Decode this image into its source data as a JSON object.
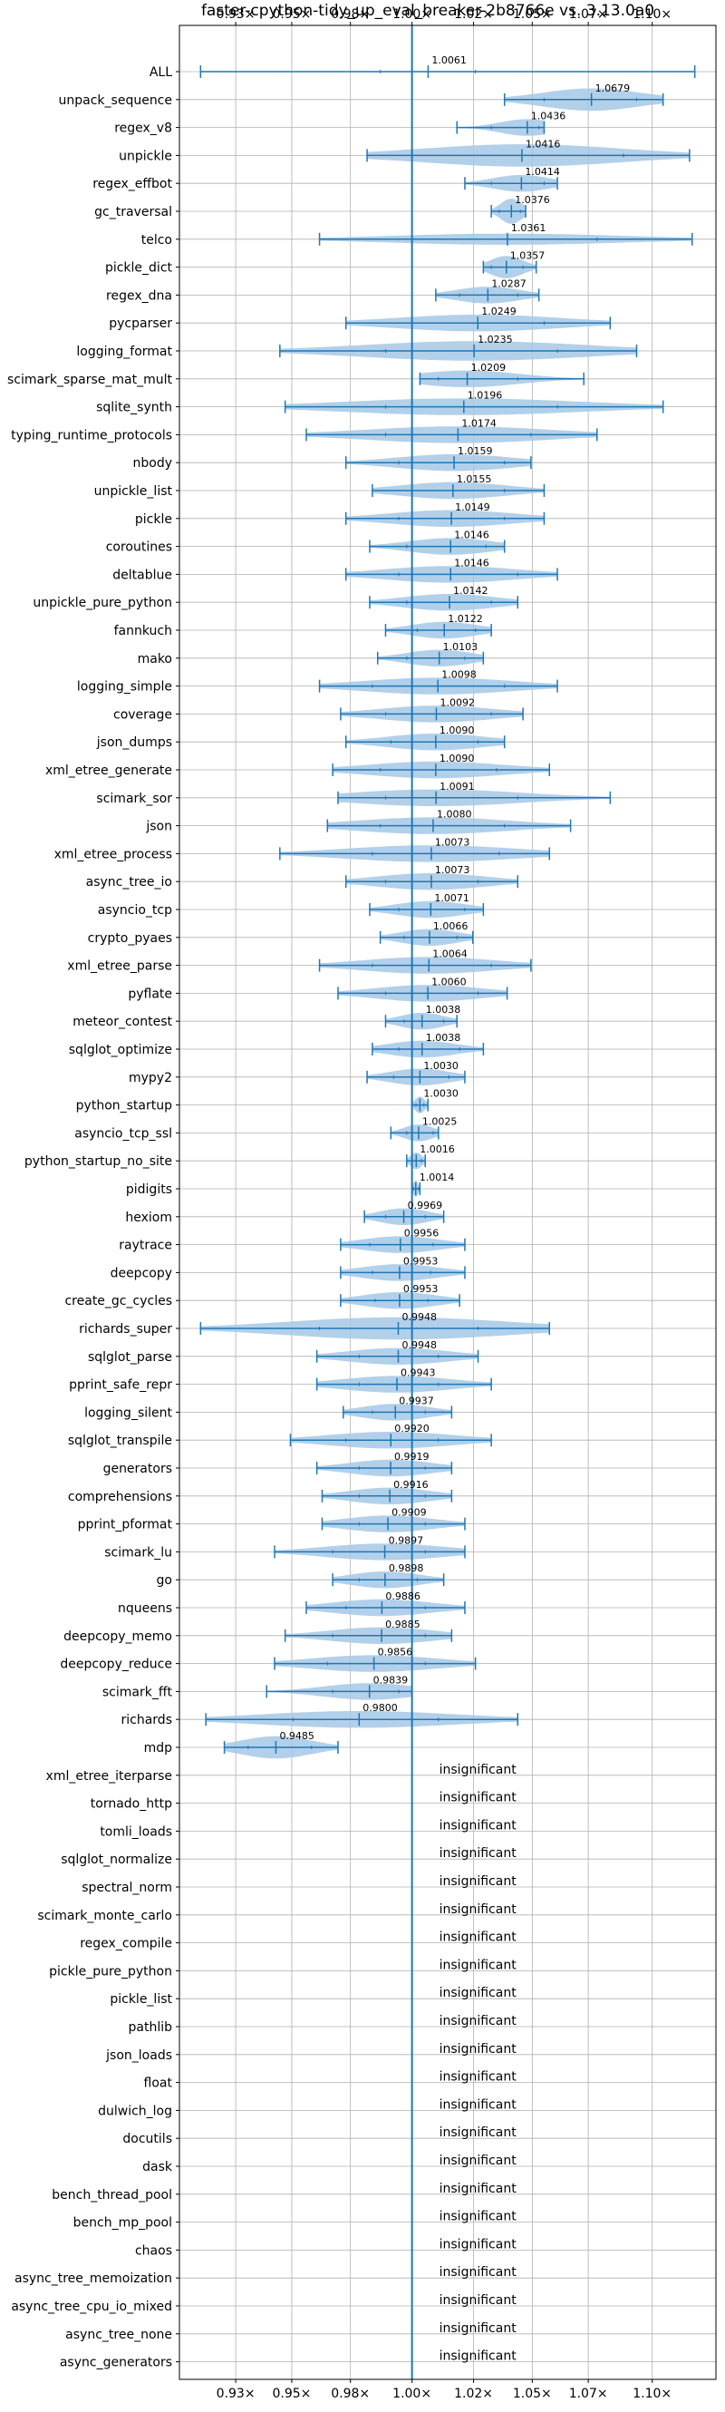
{
  "chart_data": {
    "type": "violin",
    "orientation": "horizontal",
    "title": "faster-cpython-tidy_up_eval_breaker-2b8766e vs. 3.13.0a0",
    "xlim": [
      0.912,
      1.115
    ],
    "x_ticks": [
      0.9333,
      0.9545,
      0.9767,
      1.0,
      1.0233,
      1.0455,
      1.0667,
      1.0909
    ],
    "x_tick_labels": [
      "0.93×",
      "0.95×",
      "0.98×",
      "1.00×",
      "1.02×",
      "1.05×",
      "1.07×",
      "1.10×"
    ],
    "reference_line": 1.0,
    "grid": true,
    "colors": {
      "violin_fill": "#a6c8e6",
      "line": "#1f77b4",
      "grid": "#b0b0b0"
    },
    "insignificant_label": "insignificant",
    "benchmarks": [
      {
        "name": "ALL",
        "mean": 1.0061,
        "label": "1.0061",
        "min": 0.92,
        "max": 1.107,
        "p_low": 0.988,
        "p_high": 1.024,
        "half_width": 0.003
      },
      {
        "name": "unpack_sequence",
        "mean": 1.0679,
        "label": "1.0679",
        "min": 1.035,
        "max": 1.095,
        "p_low": 1.05,
        "p_high": 1.085,
        "half_width": 0.4
      },
      {
        "name": "regex_v8",
        "mean": 1.0436,
        "label": "1.0436",
        "min": 1.017,
        "max": 1.05,
        "p_low": 1.03,
        "p_high": 1.048,
        "half_width": 0.3
      },
      {
        "name": "unpickle",
        "mean": 1.0416,
        "label": "1.0416",
        "min": 0.983,
        "max": 1.105,
        "p_low": 1.0,
        "p_high": 1.08,
        "half_width": 0.4
      },
      {
        "name": "regex_effbot",
        "mean": 1.0414,
        "label": "1.0414",
        "min": 1.02,
        "max": 1.055,
        "p_low": 1.03,
        "p_high": 1.05,
        "half_width": 0.3
      },
      {
        "name": "gc_traversal",
        "mean": 1.0376,
        "label": "1.0376",
        "min": 1.03,
        "max": 1.043,
        "p_low": 1.033,
        "p_high": 1.041,
        "half_width": 0.45
      },
      {
        "name": "telco",
        "mean": 1.0361,
        "label": "1.0361",
        "min": 0.965,
        "max": 1.106,
        "p_low": 1.0,
        "p_high": 1.07,
        "half_width": 0.2
      },
      {
        "name": "pickle_dict",
        "mean": 1.0357,
        "label": "1.0357",
        "min": 1.027,
        "max": 1.047,
        "p_low": 1.03,
        "p_high": 1.042,
        "half_width": 0.4
      },
      {
        "name": "regex_dna",
        "mean": 1.0287,
        "label": "1.0287",
        "min": 1.009,
        "max": 1.048,
        "p_low": 1.018,
        "p_high": 1.04,
        "half_width": 0.3
      },
      {
        "name": "pycparser",
        "mean": 1.0249,
        "label": "1.0249",
        "min": 0.975,
        "max": 1.075,
        "p_low": 1.0,
        "p_high": 1.05,
        "half_width": 0.3
      },
      {
        "name": "logging_format",
        "mean": 1.0235,
        "label": "1.0235",
        "min": 0.95,
        "max": 1.085,
        "p_low": 0.99,
        "p_high": 1.055,
        "half_width": 0.35
      },
      {
        "name": "scimark_sparse_mat_mult",
        "mean": 1.0209,
        "label": "1.0209",
        "min": 1.003,
        "max": 1.065,
        "p_low": 1.01,
        "p_high": 1.04,
        "half_width": 0.3
      },
      {
        "name": "sqlite_synth",
        "mean": 1.0196,
        "label": "1.0196",
        "min": 0.952,
        "max": 1.095,
        "p_low": 0.99,
        "p_high": 1.055,
        "half_width": 0.3
      },
      {
        "name": "typing_runtime_protocols",
        "mean": 1.0174,
        "label": "1.0174",
        "min": 0.96,
        "max": 1.07,
        "p_low": 0.99,
        "p_high": 1.045,
        "half_width": 0.3
      },
      {
        "name": "nbody",
        "mean": 1.0159,
        "label": "1.0159",
        "min": 0.975,
        "max": 1.045,
        "p_low": 0.995,
        "p_high": 1.035,
        "half_width": 0.3
      },
      {
        "name": "unpickle_list",
        "mean": 1.0155,
        "label": "1.0155",
        "min": 0.985,
        "max": 1.05,
        "p_low": 1.0,
        "p_high": 1.035,
        "half_width": 0.3
      },
      {
        "name": "pickle",
        "mean": 1.0149,
        "label": "1.0149",
        "min": 0.975,
        "max": 1.05,
        "p_low": 0.995,
        "p_high": 1.035,
        "half_width": 0.3
      },
      {
        "name": "coroutines",
        "mean": 1.0146,
        "label": "1.0146",
        "min": 0.984,
        "max": 1.035,
        "p_low": 0.998,
        "p_high": 1.028,
        "half_width": 0.3
      },
      {
        "name": "deltablue",
        "mean": 1.0146,
        "label": "1.0146",
        "min": 0.975,
        "max": 1.055,
        "p_low": 0.995,
        "p_high": 1.04,
        "half_width": 0.3
      },
      {
        "name": "unpickle_pure_python",
        "mean": 1.0142,
        "label": "1.0142",
        "min": 0.984,
        "max": 1.04,
        "p_low": 0.998,
        "p_high": 1.03,
        "half_width": 0.3
      },
      {
        "name": "fannkuch",
        "mean": 1.0122,
        "label": "1.0122",
        "min": 0.99,
        "max": 1.03,
        "p_low": 1.002,
        "p_high": 1.024,
        "half_width": 0.3
      },
      {
        "name": "mako",
        "mean": 1.0103,
        "label": "1.0103",
        "min": 0.987,
        "max": 1.027,
        "p_low": 0.998,
        "p_high": 1.02,
        "half_width": 0.3
      },
      {
        "name": "logging_simple",
        "mean": 1.0098,
        "label": "1.0098",
        "min": 0.965,
        "max": 1.055,
        "p_low": 0.985,
        "p_high": 1.035,
        "half_width": 0.3
      },
      {
        "name": "coverage",
        "mean": 1.0092,
        "label": "1.0092",
        "min": 0.973,
        "max": 1.042,
        "p_low": 0.99,
        "p_high": 1.03,
        "half_width": 0.3
      },
      {
        "name": "json_dumps",
        "mean": 1.009,
        "label": "1.0090",
        "min": 0.975,
        "max": 1.035,
        "p_low": 0.992,
        "p_high": 1.025,
        "half_width": 0.3
      },
      {
        "name": "xml_etree_generate",
        "mean": 1.009,
        "label": "1.0090",
        "min": 0.97,
        "max": 1.052,
        "p_low": 0.988,
        "p_high": 1.032,
        "half_width": 0.3
      },
      {
        "name": "scimark_sor",
        "mean": 1.0091,
        "label": "1.0091",
        "min": 0.972,
        "max": 1.075,
        "p_low": 0.99,
        "p_high": 1.04,
        "half_width": 0.3
      },
      {
        "name": "json",
        "mean": 1.008,
        "label": "1.0080",
        "min": 0.968,
        "max": 1.06,
        "p_low": 0.988,
        "p_high": 1.035,
        "half_width": 0.3
      },
      {
        "name": "xml_etree_process",
        "mean": 1.0073,
        "label": "1.0073",
        "min": 0.95,
        "max": 1.052,
        "p_low": 0.985,
        "p_high": 1.033,
        "half_width": 0.3
      },
      {
        "name": "async_tree_io",
        "mean": 1.0073,
        "label": "1.0073",
        "min": 0.975,
        "max": 1.04,
        "p_low": 0.99,
        "p_high": 1.025,
        "half_width": 0.3
      },
      {
        "name": "asyncio_tcp",
        "mean": 1.0071,
        "label": "1.0071",
        "min": 0.984,
        "max": 1.027,
        "p_low": 0.995,
        "p_high": 1.02,
        "half_width": 0.3
      },
      {
        "name": "crypto_pyaes",
        "mean": 1.0066,
        "label": "1.0066",
        "min": 0.988,
        "max": 1.023,
        "p_low": 0.997,
        "p_high": 1.017,
        "half_width": 0.3
      },
      {
        "name": "xml_etree_parse",
        "mean": 1.0064,
        "label": "1.0064",
        "min": 0.965,
        "max": 1.045,
        "p_low": 0.985,
        "p_high": 1.03,
        "half_width": 0.3
      },
      {
        "name": "pyflate",
        "mean": 1.006,
        "label": "1.0060",
        "min": 0.972,
        "max": 1.036,
        "p_low": 0.99,
        "p_high": 1.025,
        "half_width": 0.3
      },
      {
        "name": "meteor_contest",
        "mean": 1.0038,
        "label": "1.0038",
        "min": 0.99,
        "max": 1.017,
        "p_low": 0.997,
        "p_high": 1.012,
        "half_width": 0.3
      },
      {
        "name": "sqlglot_optimize",
        "mean": 1.0038,
        "label": "1.0038",
        "min": 0.985,
        "max": 1.027,
        "p_low": 0.995,
        "p_high": 1.018,
        "half_width": 0.3
      },
      {
        "name": "mypy2",
        "mean": 1.003,
        "label": "1.0030",
        "min": 0.983,
        "max": 1.02,
        "p_low": 0.993,
        "p_high": 1.014,
        "half_width": 0.3
      },
      {
        "name": "python_startup",
        "mean": 1.003,
        "label": "1.0030",
        "min": 1.0,
        "max": 1.006,
        "p_low": 1.0015,
        "p_high": 1.0045,
        "half_width": 0.3
      },
      {
        "name": "asyncio_tcp_ssl",
        "mean": 1.0025,
        "label": "1.0025",
        "min": 0.992,
        "max": 1.01,
        "p_low": 0.998,
        "p_high": 1.008,
        "half_width": 0.3
      },
      {
        "name": "python_startup_no_site",
        "mean": 1.0016,
        "label": "1.0016",
        "min": 0.998,
        "max": 1.005,
        "p_low": 1.0,
        "p_high": 1.0035,
        "half_width": 0.3
      },
      {
        "name": "pidigits",
        "mean": 1.0014,
        "label": "1.0014",
        "min": 1.0,
        "max": 1.003,
        "p_low": 1.0005,
        "p_high": 1.0025,
        "half_width": 0.3
      },
      {
        "name": "hexiom",
        "mean": 0.9969,
        "label": "0.9969",
        "min": 0.982,
        "max": 1.012,
        "p_low": 0.99,
        "p_high": 1.005,
        "half_width": 0.3
      },
      {
        "name": "raytrace",
        "mean": 0.9956,
        "label": "0.9956",
        "min": 0.973,
        "max": 1.02,
        "p_low": 0.984,
        "p_high": 1.008,
        "half_width": 0.3
      },
      {
        "name": "deepcopy",
        "mean": 0.9953,
        "label": "0.9953",
        "min": 0.973,
        "max": 1.02,
        "p_low": 0.985,
        "p_high": 1.007,
        "half_width": 0.3
      },
      {
        "name": "create_gc_cycles",
        "mean": 0.9953,
        "label": "0.9953",
        "min": 0.973,
        "max": 1.018,
        "p_low": 0.986,
        "p_high": 1.006,
        "half_width": 0.3
      },
      {
        "name": "richards_super",
        "mean": 0.9948,
        "label": "0.9948",
        "min": 0.92,
        "max": 1.052,
        "p_low": 0.965,
        "p_high": 1.025,
        "half_width": 0.4
      },
      {
        "name": "sqlglot_parse",
        "mean": 0.9948,
        "label": "0.9948",
        "min": 0.964,
        "max": 1.025,
        "p_low": 0.98,
        "p_high": 1.01,
        "half_width": 0.3
      },
      {
        "name": "pprint_safe_repr",
        "mean": 0.9943,
        "label": "0.9943",
        "min": 0.964,
        "max": 1.03,
        "p_low": 0.98,
        "p_high": 1.01,
        "half_width": 0.3
      },
      {
        "name": "logging_silent",
        "mean": 0.9937,
        "label": "0.9937",
        "min": 0.974,
        "max": 1.015,
        "p_low": 0.985,
        "p_high": 1.005,
        "half_width": 0.3
      },
      {
        "name": "sqlglot_transpile",
        "mean": 0.992,
        "label": "0.9920",
        "min": 0.954,
        "max": 1.03,
        "p_low": 0.975,
        "p_high": 1.01,
        "half_width": 0.3
      },
      {
        "name": "generators",
        "mean": 0.9919,
        "label": "0.9919",
        "min": 0.964,
        "max": 1.015,
        "p_low": 0.98,
        "p_high": 1.005,
        "half_width": 0.3
      },
      {
        "name": "comprehensions",
        "mean": 0.9916,
        "label": "0.9916",
        "min": 0.966,
        "max": 1.015,
        "p_low": 0.98,
        "p_high": 1.005,
        "half_width": 0.3
      },
      {
        "name": "pprint_pformat",
        "mean": 0.9909,
        "label": "0.9909",
        "min": 0.966,
        "max": 1.02,
        "p_low": 0.98,
        "p_high": 1.005,
        "half_width": 0.3
      },
      {
        "name": "scimark_lu",
        "mean": 0.9897,
        "label": "0.9897",
        "min": 0.948,
        "max": 1.02,
        "p_low": 0.97,
        "p_high": 1.005,
        "half_width": 0.3
      },
      {
        "name": "go",
        "mean": 0.9898,
        "label": "0.9898",
        "min": 0.97,
        "max": 1.012,
        "p_low": 0.98,
        "p_high": 1.002,
        "half_width": 0.3
      },
      {
        "name": "nqueens",
        "mean": 0.9886,
        "label": "0.9886",
        "min": 0.96,
        "max": 1.02,
        "p_low": 0.975,
        "p_high": 1.005,
        "half_width": 0.3
      },
      {
        "name": "deepcopy_memo",
        "mean": 0.9885,
        "label": "0.9885",
        "min": 0.952,
        "max": 1.015,
        "p_low": 0.97,
        "p_high": 1.005,
        "half_width": 0.3
      },
      {
        "name": "deepcopy_reduce",
        "mean": 0.9856,
        "label": "0.9856",
        "min": 0.948,
        "max": 1.024,
        "p_low": 0.968,
        "p_high": 1.005,
        "half_width": 0.3
      },
      {
        "name": "scimark_fft",
        "mean": 0.9839,
        "label": "0.9839",
        "min": 0.945,
        "max": 1.0,
        "p_low": 0.97,
        "p_high": 0.995,
        "half_width": 0.3
      },
      {
        "name": "richards",
        "mean": 0.98,
        "label": "0.9800",
        "min": 0.922,
        "max": 1.04,
        "p_low": 0.955,
        "p_high": 1.01,
        "half_width": 0.3
      },
      {
        "name": "mdp",
        "mean": 0.9485,
        "label": "0.9485",
        "min": 0.929,
        "max": 0.972,
        "p_low": 0.938,
        "p_high": 0.962,
        "half_width": 0.4
      },
      {
        "name": "xml_etree_iterparse",
        "insignificant": true
      },
      {
        "name": "tornado_http",
        "insignificant": true
      },
      {
        "name": "tomli_loads",
        "insignificant": true
      },
      {
        "name": "sqlglot_normalize",
        "insignificant": true
      },
      {
        "name": "spectral_norm",
        "insignificant": true
      },
      {
        "name": "scimark_monte_carlo",
        "insignificant": true
      },
      {
        "name": "regex_compile",
        "insignificant": true
      },
      {
        "name": "pickle_pure_python",
        "insignificant": true
      },
      {
        "name": "pickle_list",
        "insignificant": true
      },
      {
        "name": "pathlib",
        "insignificant": true
      },
      {
        "name": "json_loads",
        "insignificant": true
      },
      {
        "name": "float",
        "insignificant": true
      },
      {
        "name": "dulwich_log",
        "insignificant": true
      },
      {
        "name": "docutils",
        "insignificant": true
      },
      {
        "name": "dask",
        "insignificant": true
      },
      {
        "name": "bench_thread_pool",
        "insignificant": true
      },
      {
        "name": "bench_mp_pool",
        "insignificant": true
      },
      {
        "name": "chaos",
        "insignificant": true
      },
      {
        "name": "async_tree_memoization",
        "insignificant": true
      },
      {
        "name": "async_tree_cpu_io_mixed",
        "insignificant": true
      },
      {
        "name": "async_tree_none",
        "insignificant": true
      },
      {
        "name": "async_generators",
        "insignificant": true
      }
    ]
  }
}
